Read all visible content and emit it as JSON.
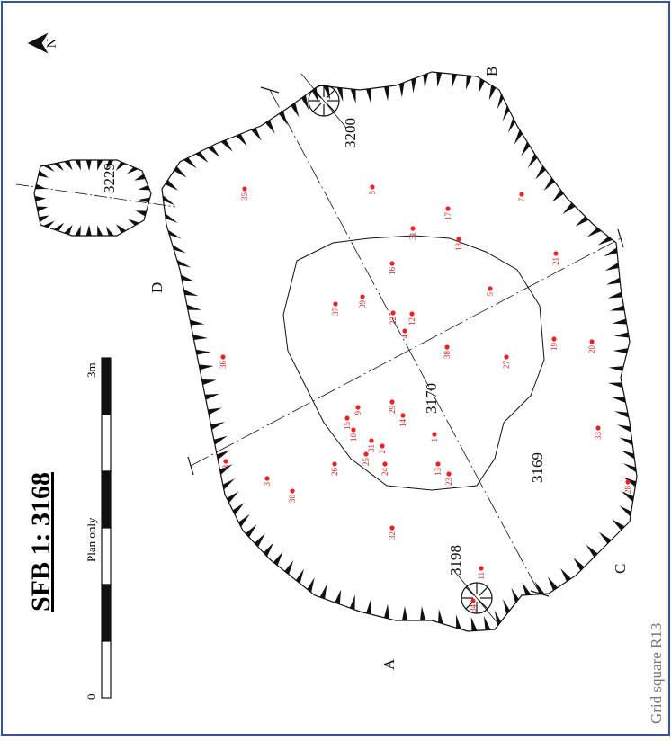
{
  "title": "SFB 1: 3168",
  "scale": {
    "start": "0",
    "end": "3m",
    "note": "Plan only"
  },
  "grid_square": "Grid square R13",
  "north": "N",
  "features": [
    "3229",
    "3200",
    "3198",
    "3170",
    "3169"
  ],
  "sections": [
    "A",
    "B",
    "C",
    "D"
  ],
  "finds": [
    "35",
    "5",
    "17",
    "7",
    "31",
    "18",
    "16",
    "21",
    "5",
    "37",
    "39",
    "22",
    "12",
    "4",
    "19",
    "20",
    "36",
    "38",
    "27",
    "29",
    "9",
    "15",
    "14",
    "10",
    "31",
    "2",
    "1",
    "33",
    "25",
    "24",
    "13",
    "23",
    "26",
    "8",
    "3",
    "30",
    "28",
    "32",
    "11",
    "34"
  ]
}
